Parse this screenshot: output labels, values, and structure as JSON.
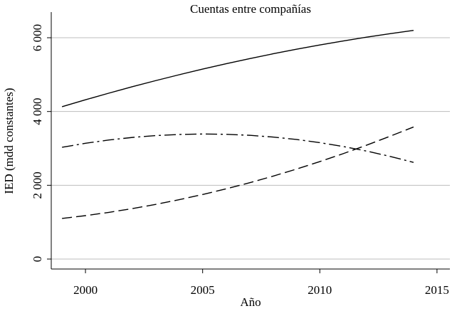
{
  "chart_data": {
    "type": "line",
    "title": "Cuentas entre compañías",
    "xlabel": "Año",
    "ylabel": "IED (mdd constantes)",
    "x": [
      1999,
      2000,
      2001,
      2002,
      2003,
      2004,
      2005,
      2006,
      2007,
      2008,
      2009,
      2010,
      2011,
      2012,
      2013,
      2014
    ],
    "series": [
      {
        "color": "#000000",
        "dash": "solid",
        "values": [
          4130,
          4318,
          4498,
          4672,
          4838,
          4997,
          5150,
          5295,
          5433,
          5564,
          5687,
          5804,
          5913,
          6016,
          6111,
          6200
        ]
      },
      {
        "color": "#000000",
        "dash": "dashdot",
        "values": [
          3030,
          3139,
          3228,
          3297,
          3348,
          3378,
          3390,
          3382,
          3355,
          3308,
          3242,
          3156,
          3051,
          2927,
          2783,
          2620
        ]
      },
      {
        "color": "#000000",
        "dash": "dashed",
        "values": [
          1100,
          1177,
          1266,
          1368,
          1482,
          1610,
          1750,
          1903,
          2068,
          2247,
          2438,
          2642,
          2858,
          3088,
          3330,
          3580
        ]
      }
    ],
    "xlim": [
      1998.54,
      2015.55
    ],
    "xticks": [
      2000,
      2005,
      2010,
      2015
    ],
    "ylim": [
      -270,
      6695
    ],
    "yticks": [
      0,
      {
        "value": 2000,
        "label": "2 000"
      },
      {
        "value": 4000,
        "label": "4 000"
      },
      {
        "value": 6000,
        "label": "6 000"
      }
    ],
    "grid": true
  }
}
